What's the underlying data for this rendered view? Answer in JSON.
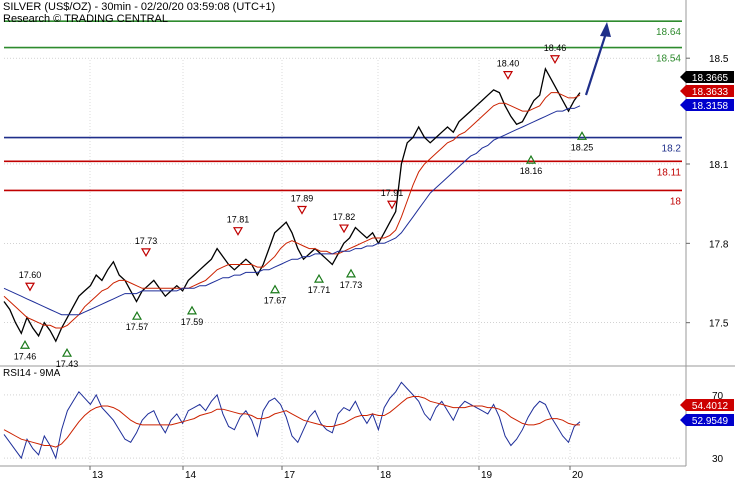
{
  "header": {
    "title": "SILVER (US$/OZ) - 30min - 02/20/20 03:59:08 (UTC+1)",
    "credit": "Research © TRADING CENTRAL"
  },
  "chart_data": [
    {
      "type": "line",
      "panel": "price",
      "ylim": [
        17.34,
        18.72
      ],
      "y_ticks": [
        "17.5",
        "17.8",
        "18.1",
        "18.5"
      ],
      "y_tick_values": [
        17.5,
        17.8,
        18.1,
        18.5
      ],
      "x_tick_labels": [
        "13",
        "14",
        "17",
        "18",
        "19",
        "20"
      ],
      "levels": [
        {
          "value": 18.64,
          "label": "18.64",
          "color": "#2e8b2e",
          "kind": "target"
        },
        {
          "value": 18.54,
          "label": "18.54",
          "color": "#2e8b2e",
          "kind": "target"
        },
        {
          "value": 18.2,
          "label": "18.2",
          "color": "#1f2f8a",
          "kind": "pivot"
        },
        {
          "value": 18.11,
          "label": "18.11",
          "color": "#c00000",
          "kind": "support"
        },
        {
          "value": 18.0,
          "label": "18",
          "color": "#c00000",
          "kind": "support"
        }
      ],
      "price_boxes": [
        {
          "label": "18.3665",
          "value": 18.3665,
          "bg": "#000000",
          "fg": "#ffffff"
        },
        {
          "label": "18.3633",
          "value": 18.3633,
          "bg": "#cc0000",
          "fg": "#ffffff"
        },
        {
          "label": "18.3158",
          "value": 18.3158,
          "bg": "#0000cc",
          "fg": "#ffffff"
        }
      ],
      "extremes": [
        {
          "label": "17.60",
          "value": 17.6,
          "kind": "high"
        },
        {
          "label": "17.46",
          "value": 17.46,
          "kind": "low"
        },
        {
          "label": "17.43",
          "value": 17.43,
          "kind": "low"
        },
        {
          "label": "17.73",
          "value": 17.73,
          "kind": "high"
        },
        {
          "label": "17.57",
          "value": 17.57,
          "kind": "low"
        },
        {
          "label": "17.59",
          "value": 17.59,
          "kind": "low"
        },
        {
          "label": "17.81",
          "value": 17.81,
          "kind": "high"
        },
        {
          "label": "17.67",
          "value": 17.67,
          "kind": "low"
        },
        {
          "label": "17.89",
          "value": 17.89,
          "kind": "high"
        },
        {
          "label": "17.71",
          "value": 17.71,
          "kind": "low"
        },
        {
          "label": "17.82",
          "value": 17.82,
          "kind": "high"
        },
        {
          "label": "17.73",
          "value": 17.73,
          "kind": "low"
        },
        {
          "label": "17.91",
          "value": 17.91,
          "kind": "high"
        },
        {
          "label": "18.40",
          "value": 18.4,
          "kind": "high"
        },
        {
          "label": "18.16",
          "value": 18.16,
          "kind": "low"
        },
        {
          "label": "18.46",
          "value": 18.46,
          "kind": "high"
        },
        {
          "label": "18.25",
          "value": 18.25,
          "kind": "low"
        }
      ],
      "series": [
        {
          "name": "price",
          "color": "#000000",
          "values": [
            17.58,
            17.55,
            17.5,
            17.46,
            17.52,
            17.48,
            17.45,
            17.5,
            17.47,
            17.43,
            17.48,
            17.52,
            17.56,
            17.6,
            17.62,
            17.64,
            17.68,
            17.66,
            17.7,
            17.73,
            17.68,
            17.66,
            17.62,
            17.58,
            17.62,
            17.64,
            17.66,
            17.63,
            17.6,
            17.62,
            17.64,
            17.62,
            17.66,
            17.68,
            17.7,
            17.72,
            17.74,
            17.78,
            17.75,
            17.72,
            17.7,
            17.72,
            17.74,
            17.72,
            17.68,
            17.72,
            17.78,
            17.84,
            17.86,
            17.88,
            17.84,
            17.78,
            17.74,
            17.76,
            17.78,
            17.76,
            17.74,
            17.72,
            17.76,
            17.8,
            17.82,
            17.86,
            17.84,
            17.82,
            17.84,
            17.8,
            17.84,
            17.88,
            17.92,
            18.1,
            18.18,
            18.2,
            18.24,
            18.2,
            18.18,
            18.2,
            18.22,
            18.24,
            18.22,
            18.26,
            18.28,
            18.3,
            18.32,
            18.34,
            18.36,
            18.38,
            18.37,
            18.32,
            18.28,
            18.25,
            18.26,
            18.3,
            18.34,
            18.36,
            18.46,
            18.42,
            18.38,
            18.34,
            18.3,
            18.34,
            18.37
          ]
        },
        {
          "name": "",
          "color": "#cc2200",
          "values": [
            17.6,
            17.58,
            17.56,
            17.54,
            17.52,
            17.51,
            17.5,
            17.49,
            17.49,
            17.48,
            17.48,
            17.49,
            17.51,
            17.53,
            17.56,
            17.58,
            17.6,
            17.62,
            17.63,
            17.65,
            17.66,
            17.66,
            17.65,
            17.64,
            17.63,
            17.63,
            17.63,
            17.63,
            17.63,
            17.63,
            17.63,
            17.63,
            17.63,
            17.64,
            17.65,
            17.66,
            17.68,
            17.7,
            17.71,
            17.72,
            17.72,
            17.72,
            17.72,
            17.72,
            17.71,
            17.71,
            17.73,
            17.75,
            17.78,
            17.8,
            17.81,
            17.8,
            17.79,
            17.78,
            17.78,
            17.77,
            17.77,
            17.76,
            17.76,
            17.77,
            17.78,
            17.79,
            17.8,
            17.81,
            17.82,
            17.82,
            17.82,
            17.83,
            17.85,
            17.9,
            17.96,
            18.02,
            18.07,
            18.1,
            18.12,
            18.14,
            18.16,
            18.18,
            18.19,
            18.21,
            18.22,
            18.24,
            18.26,
            18.28,
            18.3,
            18.32,
            18.33,
            18.33,
            18.32,
            18.31,
            18.3,
            18.3,
            18.31,
            18.32,
            18.35,
            18.37,
            18.37,
            18.36,
            18.35,
            18.35,
            18.36
          ]
        },
        {
          "name": "",
          "color": "#1f2f9a",
          "values": [
            17.63,
            17.62,
            17.61,
            17.6,
            17.59,
            17.58,
            17.57,
            17.56,
            17.55,
            17.54,
            17.53,
            17.53,
            17.53,
            17.53,
            17.54,
            17.55,
            17.56,
            17.57,
            17.58,
            17.59,
            17.6,
            17.61,
            17.61,
            17.61,
            17.62,
            17.62,
            17.62,
            17.62,
            17.62,
            17.62,
            17.62,
            17.63,
            17.63,
            17.63,
            17.64,
            17.64,
            17.65,
            17.66,
            17.67,
            17.67,
            17.68,
            17.68,
            17.69,
            17.69,
            17.69,
            17.7,
            17.7,
            17.71,
            17.72,
            17.73,
            17.74,
            17.74,
            17.75,
            17.75,
            17.76,
            17.76,
            17.76,
            17.76,
            17.77,
            17.77,
            17.77,
            17.78,
            17.78,
            17.79,
            17.79,
            17.8,
            17.8,
            17.81,
            17.82,
            17.84,
            17.87,
            17.9,
            17.93,
            17.96,
            17.99,
            18.01,
            18.03,
            18.05,
            18.07,
            18.09,
            18.11,
            18.13,
            18.14,
            18.16,
            18.17,
            18.19,
            18.2,
            18.21,
            18.22,
            18.23,
            18.24,
            18.25,
            18.26,
            18.27,
            18.28,
            18.29,
            18.3,
            18.3,
            18.31,
            18.31,
            18.32
          ]
        }
      ]
    },
    {
      "type": "line",
      "panel": "indicator",
      "title": "RSI14 - 9MA",
      "ylim": [
        25,
        82
      ],
      "y_ticks": [
        "70",
        "30"
      ],
      "y_tick_values": [
        70,
        30
      ],
      "value_boxes": [
        {
          "label": "54.4012",
          "value": 54.4012,
          "bg": "#cc0000",
          "fg": "#ffffff"
        },
        {
          "label": "52.9549",
          "value": 52.9549,
          "bg": "#0000cc",
          "fg": "#ffffff"
        }
      ],
      "series": [
        {
          "name": "RSI14",
          "color": "#1f2f9a",
          "values": [
            45,
            40,
            35,
            30,
            42,
            36,
            32,
            44,
            38,
            30,
            48,
            60,
            66,
            72,
            68,
            64,
            70,
            62,
            58,
            54,
            48,
            42,
            40,
            46,
            54,
            58,
            60,
            52,
            46,
            54,
            58,
            52,
            60,
            62,
            64,
            60,
            66,
            70,
            58,
            50,
            48,
            56,
            60,
            54,
            44,
            60,
            66,
            68,
            64,
            56,
            44,
            40,
            48,
            56,
            60,
            52,
            48,
            46,
            58,
            62,
            60,
            66,
            58,
            52,
            58,
            48,
            62,
            68,
            72,
            78,
            74,
            70,
            66,
            58,
            54,
            62,
            66,
            60,
            54,
            62,
            66,
            64,
            62,
            60,
            58,
            64,
            56,
            44,
            38,
            42,
            48,
            56,
            62,
            66,
            64,
            56,
            50,
            44,
            40,
            50,
            53
          ]
        },
        {
          "name": "9MA",
          "color": "#cc2200",
          "values": [
            48,
            46,
            44,
            42,
            41,
            40,
            39,
            38,
            38,
            37,
            39,
            43,
            48,
            53,
            57,
            60,
            62,
            63,
            63,
            62,
            60,
            57,
            54,
            52,
            51,
            51,
            51,
            51,
            51,
            51,
            52,
            53,
            54,
            55,
            57,
            58,
            59,
            61,
            61,
            60,
            59,
            58,
            58,
            57,
            55,
            55,
            56,
            58,
            59,
            60,
            58,
            56,
            54,
            53,
            52,
            51,
            50,
            50,
            51,
            52,
            54,
            56,
            57,
            57,
            58,
            57,
            57,
            59,
            62,
            65,
            68,
            69,
            69,
            68,
            66,
            65,
            64,
            63,
            62,
            62,
            62,
            63,
            63,
            63,
            62,
            62,
            61,
            59,
            56,
            54,
            52,
            51,
            51,
            52,
            54,
            55,
            55,
            54,
            52,
            51,
            51
          ]
        }
      ]
    }
  ]
}
